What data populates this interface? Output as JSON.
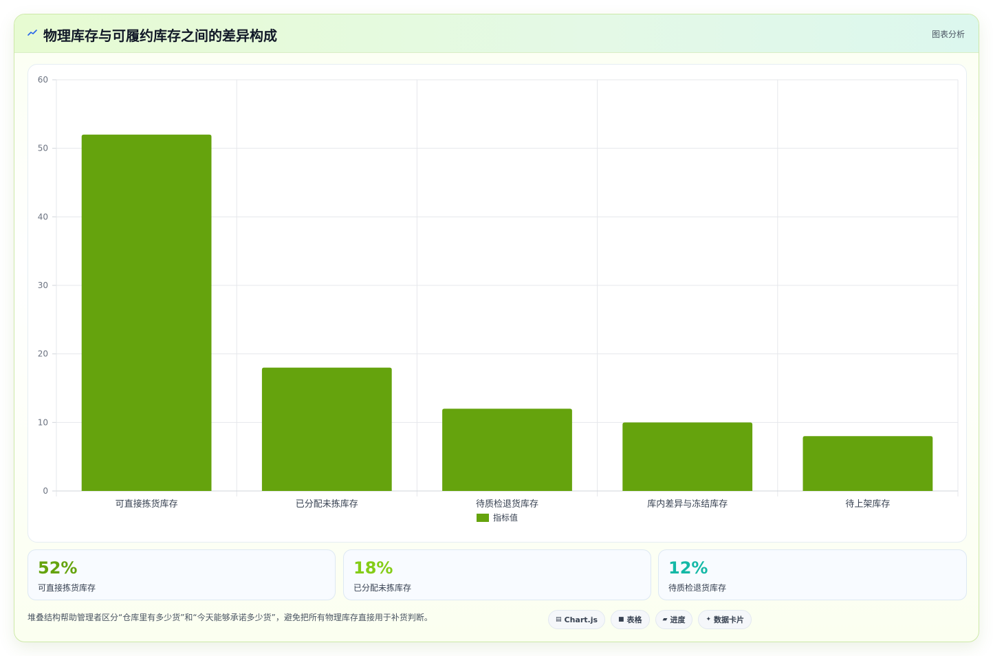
{
  "header": {
    "title": "物理库存与可履约库存之间的差异构成",
    "meta": "图表分析",
    "accent": "#2563eb"
  },
  "chart_data": {
    "type": "bar",
    "categories": [
      "可直接拣货库存",
      "已分配未拣库存",
      "待质检退货库存",
      "库内差异与冻结库存",
      "待上架库存"
    ],
    "series": [
      {
        "name": "指标值",
        "values": [
          52,
          18,
          12,
          10,
          8
        ],
        "color": "#65a30d"
      }
    ],
    "ylim": [
      0,
      60
    ],
    "yticks": [
      0,
      10,
      20,
      30,
      40,
      50,
      60
    ],
    "grid": true,
    "legend_position": "bottom"
  },
  "stats": [
    {
      "value": "52%",
      "label": "可直接拣货库存",
      "color": "#65a30d"
    },
    {
      "value": "18%",
      "label": "已分配未拣库存",
      "color": "#84cc16"
    },
    {
      "value": "12%",
      "label": "待质检退货库存",
      "color": "#14b8a6"
    }
  ],
  "footer": {
    "note": "堆叠结构帮助管理者区分“仓库里有多少货”和“今天能够承诺多少货”，避免把所有物理库存直接用于补货判断。",
    "tags": [
      {
        "icon": "chart-icon",
        "label": "Chart.js"
      },
      {
        "icon": "table-icon",
        "label": "表格"
      },
      {
        "icon": "progress-icon",
        "label": "进度"
      },
      {
        "icon": "sparkle-icon",
        "label": "数据卡片"
      }
    ]
  }
}
